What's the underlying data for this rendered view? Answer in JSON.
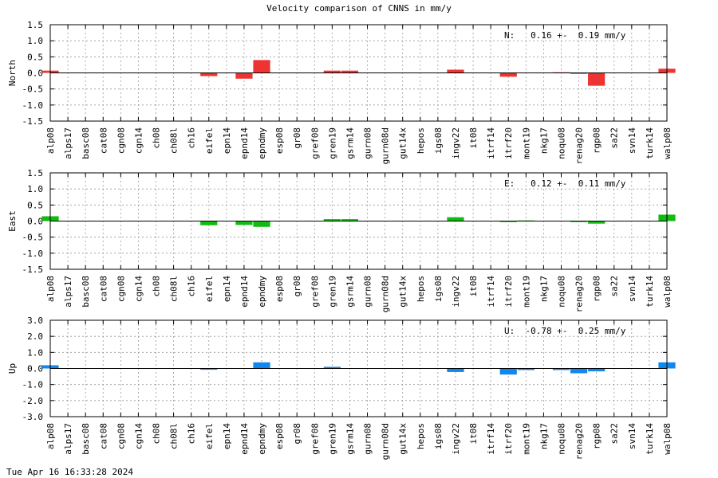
{
  "page": {
    "title": "Velocity comparison of CNNS in mm/y",
    "timestamp": "Tue Apr 16 16:33:28 2024"
  },
  "chart_data": [
    {
      "type": "bar",
      "panel": "north",
      "ylabel": "North",
      "annotation": "N:   0.16 +-  0.19 mm/y",
      "color": "#ee3333",
      "ylim": [
        -1.5,
        1.5
      ],
      "yticks": [
        -1.5,
        -1.0,
        -0.5,
        0.0,
        0.5,
        1.0,
        1.5
      ],
      "ytick_labels": [
        "-1.5",
        "-1.0",
        "-0.5",
        "0.0",
        "0.5",
        "1.0",
        "1.5"
      ],
      "grid": true,
      "categories": [
        "alp08",
        "alps17",
        "basc08",
        "cat08",
        "cgn08",
        "cgn14",
        "ch08",
        "ch08l",
        "ch16",
        "eifel",
        "epn14",
        "epnd14",
        "epndmy",
        "esp08",
        "gr08",
        "gref08",
        "gren19",
        "gsrm14",
        "gurn08",
        "gurn08d",
        "gut14x",
        "hepos",
        "igs08",
        "ingv22",
        "it08",
        "itrf14",
        "itrf20",
        "mont19",
        "nkg17",
        "noqu08",
        "renag20",
        "rgp08",
        "sa22",
        "svn14",
        "turk14",
        "walp08"
      ],
      "values": [
        0.07,
        0,
        0,
        0,
        0,
        0,
        0,
        0,
        0,
        -0.1,
        0,
        -0.18,
        0.4,
        0,
        0,
        0,
        0.07,
        0.07,
        0,
        0,
        0,
        0,
        0,
        0.1,
        0,
        0,
        -0.12,
        0,
        0,
        0.02,
        -0.03,
        -0.4,
        0,
        0,
        0,
        0.13
      ]
    },
    {
      "type": "bar",
      "panel": "east",
      "ylabel": "East",
      "annotation": "E:   0.12 +-  0.11 mm/y",
      "color": "#11bb11",
      "ylim": [
        -1.5,
        1.5
      ],
      "yticks": [
        -1.5,
        -1.0,
        -0.5,
        0.0,
        0.5,
        1.0,
        1.5
      ],
      "ytick_labels": [
        "-1.5",
        "-1.0",
        "-0.5",
        "0.0",
        "0.5",
        "1.0",
        "1.5"
      ],
      "grid": true,
      "categories": [
        "alp08",
        "alps17",
        "basc08",
        "cat08",
        "cgn08",
        "cgn14",
        "ch08",
        "ch08l",
        "ch16",
        "eifel",
        "epn14",
        "epnd14",
        "epndmy",
        "esp08",
        "gr08",
        "gref08",
        "gren19",
        "gsrm14",
        "gurn08",
        "gurn08d",
        "gut14x",
        "hepos",
        "igs08",
        "ingv22",
        "it08",
        "itrf14",
        "itrf20",
        "mont19",
        "nkg17",
        "noqu08",
        "renag20",
        "rgp08",
        "sa22",
        "svn14",
        "turk14",
        "walp08"
      ],
      "values": [
        0.15,
        0,
        0,
        0,
        0,
        0,
        0,
        0,
        0,
        -0.13,
        0,
        -0.12,
        -0.18,
        0,
        0,
        0,
        0.06,
        0.06,
        0,
        0,
        0,
        0,
        0,
        0.12,
        0,
        0,
        -0.03,
        0.02,
        0,
        0,
        -0.03,
        -0.08,
        0,
        0,
        0,
        0.2
      ]
    },
    {
      "type": "bar",
      "panel": "up",
      "ylabel": "Up",
      "annotation": "U:  -0.78 +-  0.25 mm/y",
      "color": "#1188ee",
      "ylim": [
        -3.0,
        3.0
      ],
      "yticks": [
        -3.0,
        -2.0,
        -1.0,
        0.0,
        1.0,
        2.0,
        3.0
      ],
      "ytick_labels": [
        "-3.0",
        "-2.0",
        "-1.0",
        "0.0",
        "1.0",
        "2.0",
        "3.0"
      ],
      "grid": true,
      "categories": [
        "alp08",
        "alps17",
        "basc08",
        "cat08",
        "cgn08",
        "cgn14",
        "ch08",
        "ch08l",
        "ch16",
        "eifel",
        "epn14",
        "epnd14",
        "epndmy",
        "esp08",
        "gr08",
        "gref08",
        "gren19",
        "gsrm14",
        "gurn08",
        "gurn08d",
        "gut14x",
        "hepos",
        "igs08",
        "ingv22",
        "it08",
        "itrf14",
        "itrf20",
        "mont19",
        "nkg17",
        "noqu08",
        "renag20",
        "rgp08",
        "sa22",
        "svn14",
        "turk14",
        "walp08"
      ],
      "values": [
        0.2,
        0,
        0,
        0,
        0,
        0,
        0,
        0,
        0,
        -0.08,
        0,
        0,
        0.38,
        0,
        0,
        0,
        0.1,
        0,
        0,
        0,
        0,
        0,
        0,
        -0.22,
        0,
        0,
        -0.38,
        -0.1,
        0,
        -0.1,
        -0.3,
        -0.18,
        0,
        0,
        0,
        0.38
      ]
    }
  ]
}
